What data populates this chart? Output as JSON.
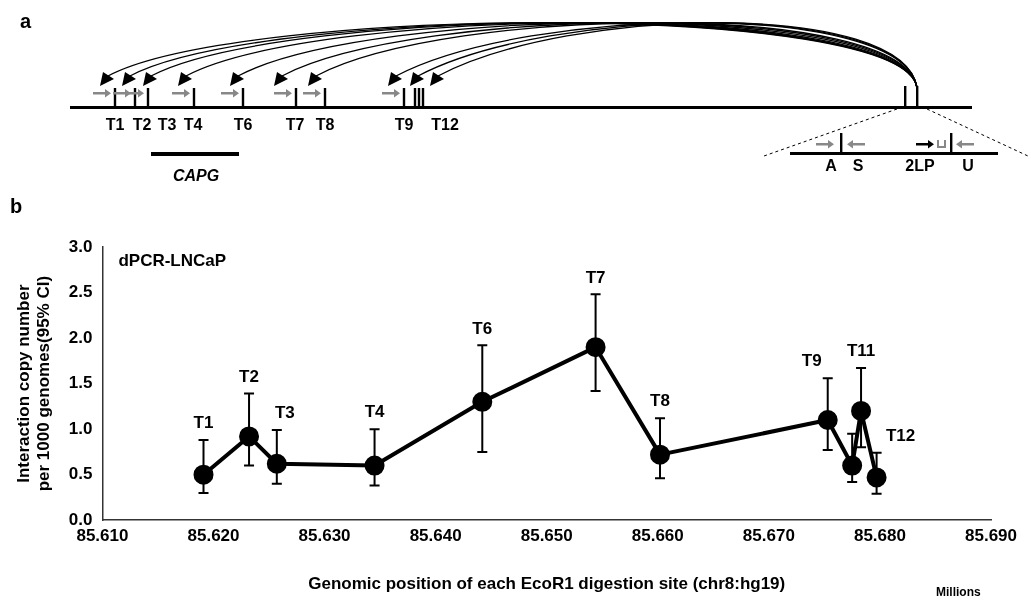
{
  "chart_data": [
    {
      "type": "other",
      "title": "a",
      "annotations": [
        "T1",
        "T2",
        "T3",
        "T4",
        "T6",
        "T7",
        "T8",
        "T9",
        "T12",
        "CAPG",
        "A",
        "S",
        "2LP",
        "U"
      ]
    },
    {
      "type": "line",
      "title": "b",
      "xlabel": "Genomic position of each EcoR1 digestion site (chr8:hg19)",
      "ylabel": "Interaction copy number per 1000 genomes(95% CI)",
      "x": [
        85.6191,
        85.6232,
        85.6257,
        85.6345,
        85.6442,
        85.6544,
        85.6602,
        85.6753,
        85.6775,
        85.6783,
        85.6797
      ],
      "series": [
        {
          "color": "#000000",
          "values": [
            0.5,
            0.92,
            0.62,
            0.6,
            1.3,
            1.9,
            0.72,
            1.1,
            0.6,
            1.2,
            0.47
          ],
          "errors": [
            [
              0.3,
              0.88
            ],
            [
              0.6,
              1.39
            ],
            [
              0.4,
              0.99
            ],
            [
              0.38,
              1.0
            ],
            [
              0.75,
              1.92
            ],
            [
              1.42,
              2.48
            ],
            [
              0.46,
              1.12
            ],
            [
              0.77,
              1.56
            ],
            [
              0.42,
              0.95
            ],
            [
              0.8,
              1.67
            ],
            [
              0.29,
              0.74
            ]
          ]
        }
      ],
      "xlim": [
        85.61,
        85.69
      ],
      "xticks": [
        {
          "value": 85.61,
          "label": "85.610"
        },
        {
          "value": 85.62,
          "label": "85.620"
        },
        {
          "value": 85.63,
          "label": "85.630"
        },
        {
          "value": 85.64,
          "label": "85.640"
        },
        {
          "value": 85.65,
          "label": "85.650"
        },
        {
          "value": 85.66,
          "label": "85.660"
        },
        {
          "value": 85.67,
          "label": "85.670"
        },
        {
          "value": 85.68,
          "label": "85.680"
        },
        {
          "value": 85.69,
          "label": "85.690"
        }
      ],
      "ylim": [
        0,
        3
      ],
      "yticks": [
        {
          "value": 0,
          "label": "0.0"
        },
        {
          "value": 0.5,
          "label": "0.5"
        },
        {
          "value": 1,
          "label": "1.0"
        },
        {
          "value": 1.5,
          "label": "1.5"
        },
        {
          "value": 2,
          "label": "2.0"
        },
        {
          "value": 2.5,
          "label": "2.5"
        },
        {
          "value": 3,
          "label": "3.0"
        }
      ],
      "grid": false,
      "legend": false,
      "marker": "circle",
      "line_style": "solid",
      "annotations": [
        "dPCR-LNCaP",
        "Millions",
        {
          "text": "T1",
          "x": 85.6191,
          "y": 0.88
        },
        {
          "text": "T2",
          "x": 85.6232,
          "y": 1.39
        },
        {
          "text": "T3",
          "x": 85.6257,
          "y": 0.99
        },
        {
          "text": "T4",
          "x": 85.6345,
          "y": 1.0
        },
        {
          "text": "T6",
          "x": 85.6442,
          "y": 1.92
        },
        {
          "text": "T7",
          "x": 85.6544,
          "y": 2.48
        },
        {
          "text": "T8",
          "x": 85.6602,
          "y": 1.12
        },
        {
          "text": "T9",
          "x": 85.6753,
          "y": 1.56
        },
        {
          "text": "T11",
          "x": 85.6783,
          "y": 1.67
        },
        {
          "text": "T12",
          "x": 85.6797,
          "y": 0.74
        }
      ]
    }
  ]
}
